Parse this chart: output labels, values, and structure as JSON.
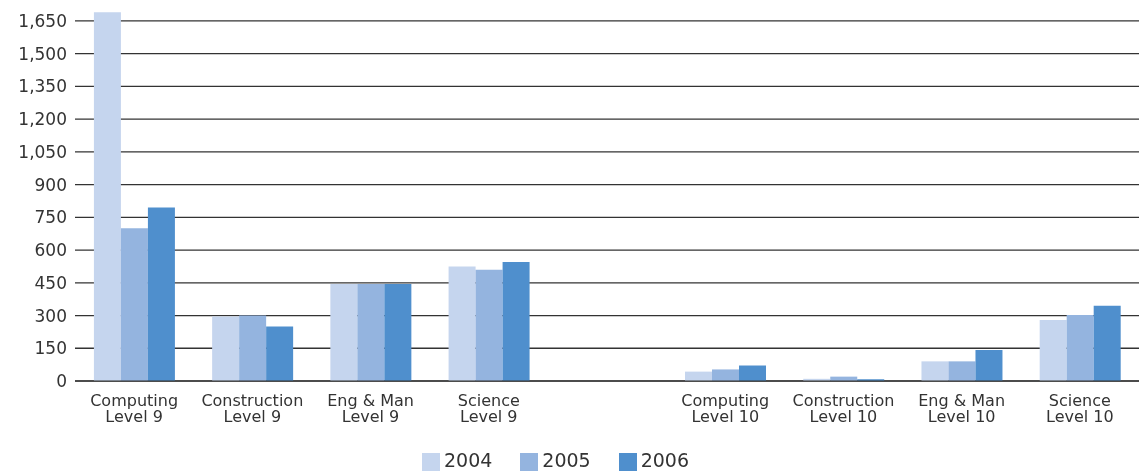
{
  "chart_data": {
    "type": "bar",
    "categories": [
      "Computing Level 9",
      "Construction Level 9",
      "Eng & Man Level 9",
      "Science Level 9",
      null,
      "Computing Level 10",
      "Construction Level 10",
      "Eng & Man Level 10",
      "Science Level 10"
    ],
    "series": [
      {
        "name": "2004",
        "color": "#c5d5ee",
        "values": [
          1690,
          295,
          445,
          525,
          null,
          43,
          10,
          90,
          280
        ]
      },
      {
        "name": "2005",
        "color": "#94b4df",
        "values": [
          700,
          300,
          445,
          510,
          null,
          53,
          20,
          90,
          302
        ]
      },
      {
        "name": "2006",
        "color": "#4f8fcd",
        "values": [
          795,
          250,
          445,
          545,
          null,
          71,
          8,
          142,
          345
        ]
      }
    ],
    "ylim": [
      0,
      1700
    ],
    "yticks": [
      0,
      150,
      300,
      450,
      600,
      750,
      900,
      {
        "value": 1050,
        "label": "1,050"
      },
      {
        "value": 1200,
        "label": "1,200"
      },
      {
        "value": 1350,
        "label": "1,350"
      },
      {
        "value": 1500,
        "label": "1,500"
      },
      {
        "value": 1650,
        "label": "1,650"
      }
    ],
    "grid": "y",
    "legend": "bottom"
  }
}
